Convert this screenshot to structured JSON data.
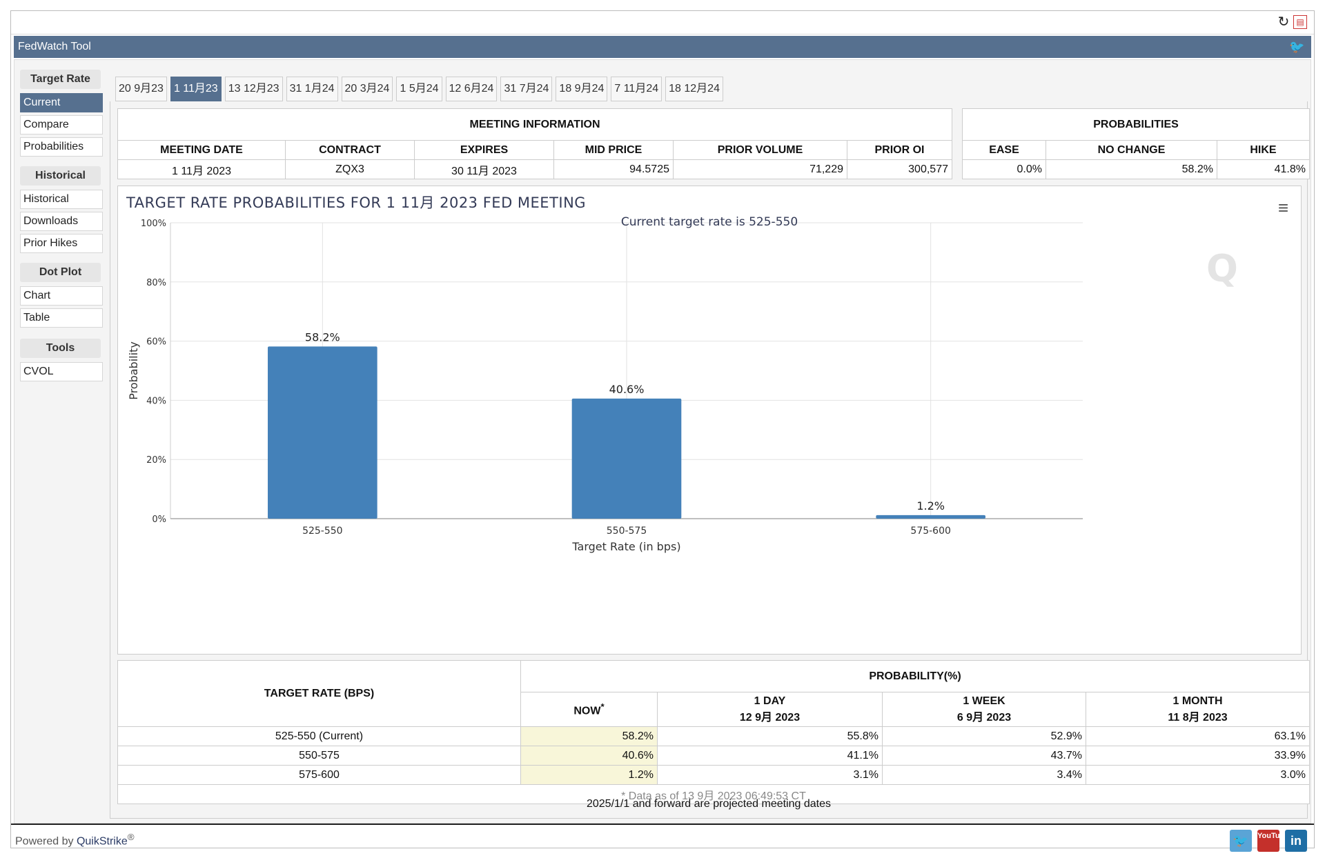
{
  "app": {
    "title": "FedWatch Tool"
  },
  "sidebar": {
    "groups": [
      {
        "header": "Target Rate",
        "items": [
          "Current",
          "Compare",
          "Probabilities"
        ]
      },
      {
        "header": "Historical",
        "items": [
          "Historical",
          "Downloads",
          "Prior Hikes"
        ]
      },
      {
        "header": "Dot Plot",
        "items": [
          "Chart",
          "Table"
        ]
      },
      {
        "header": "Tools",
        "items": [
          "CVOL"
        ]
      }
    ],
    "active_item": "Current"
  },
  "tabs": [
    "20 9月23",
    "1 11月23",
    "13 12月23",
    "31 1月24",
    "20 3月24",
    "1 5月24",
    "12 6月24",
    "31 7月24",
    "18 9月24",
    "7 11月24",
    "18 12月24"
  ],
  "active_tab": "1 11月23",
  "meeting_info": {
    "title": "MEETING INFORMATION",
    "headers": [
      "MEETING DATE",
      "CONTRACT",
      "EXPIRES",
      "MID PRICE",
      "PRIOR VOLUME",
      "PRIOR OI"
    ],
    "values": [
      "1 11月 2023",
      "ZQX3",
      "30 11月 2023",
      "94.5725",
      "71,229",
      "300,577"
    ]
  },
  "probabilities": {
    "title": "PROBABILITIES",
    "headers": [
      "EASE",
      "NO CHANGE",
      "HIKE"
    ],
    "values": [
      "0.0%",
      "58.2%",
      "41.8%"
    ]
  },
  "chart_data": {
    "type": "bar",
    "title": "TARGET RATE PROBABILITIES FOR 1 11月 2023 FED MEETING",
    "subtitle": "Current target rate is 525-550",
    "xlabel": "Target Rate (in bps)",
    "ylabel": "Probability",
    "categories": [
      "525-550",
      "550-575",
      "575-600"
    ],
    "values": [
      58.2,
      40.6,
      1.2
    ],
    "data_labels": [
      "58.2%",
      "40.6%",
      "1.2%"
    ],
    "yticks": [
      "0%",
      "20%",
      "40%",
      "60%",
      "80%",
      "100%"
    ],
    "ylim": [
      0,
      100
    ],
    "grid": true,
    "bar_color": "#4481b9"
  },
  "prob_table": {
    "rate_header": "TARGET RATE (BPS)",
    "prob_header": "PROBABILITY(%)",
    "cols": [
      {
        "line1": "NOW",
        "line2": ""
      },
      {
        "line1": "1 DAY",
        "line2": "12 9月 2023"
      },
      {
        "line1": "1 WEEK",
        "line2": "6 9月 2023"
      },
      {
        "line1": "1 MONTH",
        "line2": "11 8月 2023"
      }
    ],
    "now_mark": "*",
    "rows": [
      {
        "rate": "525-550 (Current)",
        "values": [
          "58.2%",
          "55.8%",
          "52.9%",
          "63.1%"
        ]
      },
      {
        "rate": "550-575",
        "values": [
          "40.6%",
          "41.1%",
          "43.7%",
          "33.9%"
        ]
      },
      {
        "rate": "575-600",
        "values": [
          "1.2%",
          "3.1%",
          "3.4%",
          "3.0%"
        ]
      }
    ],
    "note": "* Data as of 13 9月 2023 06:49:53 CT"
  },
  "footnote": "2025/1/1 and forward are projected meeting dates",
  "footer": {
    "powered_prefix": "Powered by",
    "brand": "QuikStrike",
    "reg": "®",
    "social": [
      "twitter",
      "YouTube",
      "in"
    ]
  },
  "icons": {
    "refresh": "refresh-icon",
    "pdf": "pdf-icon",
    "menu": "menu-icon",
    "twitter": "twitter-icon",
    "watermark": "Q"
  }
}
